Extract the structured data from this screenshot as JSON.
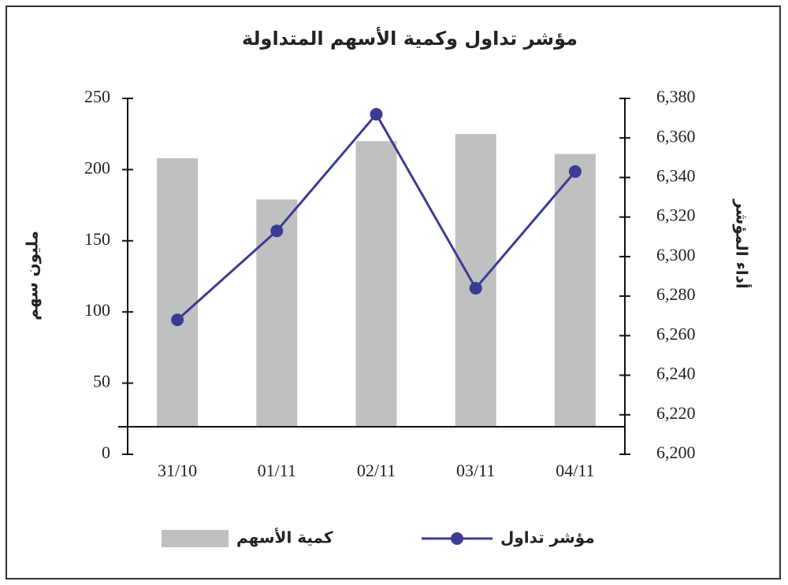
{
  "chart_data": {
    "type": "combo",
    "title": "مؤشر تداول وكمية الأسهم المتداولة",
    "y_label": "مليون سهم",
    "y2_label": "أداء المؤشر",
    "categories": [
      "31/10",
      "01/11",
      "02/11",
      "03/11",
      "04/11"
    ],
    "series": [
      {
        "name": "كمية الأسهم",
        "type": "bar",
        "color": "#c0c0c0",
        "values": [
          208,
          179,
          220,
          225,
          211
        ]
      },
      {
        "name": "مؤشر تداول",
        "type": "line",
        "axis": "y2",
        "color": "#3b3b96",
        "values": [
          6268,
          6313,
          6372,
          6284,
          6343
        ]
      }
    ],
    "ylim": [
      0,
      250
    ],
    "yticks": [
      0,
      50,
      100,
      150,
      200,
      250
    ],
    "y2lim": [
      6200,
      6380
    ],
    "y2ticks": [
      {
        "value": 6200,
        "label": "6,200"
      },
      {
        "value": 6220,
        "label": "6,220"
      },
      {
        "value": 6240,
        "label": "6,240"
      },
      {
        "value": 6260,
        "label": "6,260"
      },
      {
        "value": 6280,
        "label": "6,280"
      },
      {
        "value": 6300,
        "label": "6,300"
      },
      {
        "value": 6320,
        "label": "6,320"
      },
      {
        "value": 6340,
        "label": "6,340"
      },
      {
        "value": 6360,
        "label": "6,360"
      },
      {
        "value": 6380,
        "label": "6,380"
      }
    ],
    "grid": false
  }
}
